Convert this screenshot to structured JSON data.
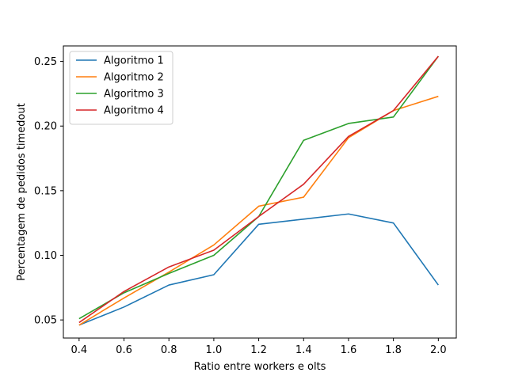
{
  "chart_data": {
    "type": "line",
    "title": "",
    "xlabel": "Ratio entre workers e olts",
    "ylabel": "Percentagem de pedidos timedout",
    "x": [
      0.4,
      0.6,
      0.8,
      1.0,
      1.2,
      1.4,
      1.6,
      1.8,
      2.0
    ],
    "xlim": [
      0.33,
      2.08
    ],
    "ylim": [
      0.036,
      0.262
    ],
    "xticks": [
      "0.4",
      "0.6",
      "0.8",
      "1.0",
      "1.2",
      "1.4",
      "1.6",
      "1.8",
      "2.0"
    ],
    "yticks": [
      "0.05",
      "0.10",
      "0.15",
      "0.20",
      "0.25"
    ],
    "grid": false,
    "legend_position": "top-left",
    "series": [
      {
        "name": "Algoritmo 1",
        "color": "#1f77b4",
        "values": [
          0.046,
          0.06,
          0.077,
          0.085,
          0.124,
          0.128,
          0.132,
          0.125,
          0.077
        ]
      },
      {
        "name": "Algoritmo 2",
        "color": "#ff7f0e",
        "values": [
          0.046,
          0.067,
          0.087,
          0.108,
          0.138,
          0.145,
          0.191,
          0.212,
          0.223
        ]
      },
      {
        "name": "Algoritmo 3",
        "color": "#2ca02c",
        "values": [
          0.051,
          0.071,
          0.086,
          0.1,
          0.13,
          0.189,
          0.202,
          0.207,
          0.254
        ]
      },
      {
        "name": "Algoritmo 4",
        "color": "#d62728",
        "values": [
          0.048,
          0.072,
          0.091,
          0.104,
          0.13,
          0.155,
          0.192,
          0.212,
          0.254
        ]
      }
    ]
  }
}
